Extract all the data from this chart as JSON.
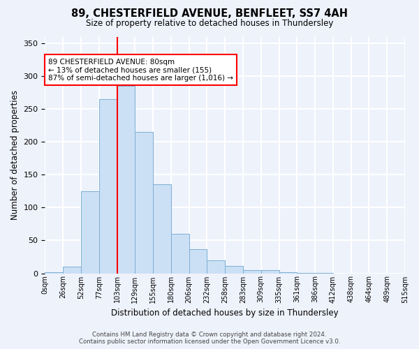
{
  "title": "89, CHESTERFIELD AVENUE, BENFLEET, SS7 4AH",
  "subtitle": "Size of property relative to detached houses in Thundersley",
  "xlabel": "Distribution of detached houses by size in Thundersley",
  "ylabel": "Number of detached properties",
  "bar_color": "#cce0f5",
  "bar_edge_color": "#7bafd4",
  "bin_labels": [
    "0sqm",
    "26sqm",
    "52sqm",
    "77sqm",
    "103sqm",
    "129sqm",
    "155sqm",
    "180sqm",
    "206sqm",
    "232sqm",
    "258sqm",
    "283sqm",
    "309sqm",
    "335sqm",
    "361sqm",
    "386sqm",
    "412sqm",
    "438sqm",
    "464sqm",
    "489sqm",
    "515sqm"
  ],
  "counts": [
    2,
    10,
    125,
    265,
    285,
    215,
    135,
    60,
    37,
    20,
    11,
    5,
    5,
    2,
    1,
    1,
    0,
    0,
    0,
    0
  ],
  "vline_bin": 3,
  "annotation_lines": [
    "89 CHESTERFIELD AVENUE: 80sqm",
    "← 13% of detached houses are smaller (155)",
    "87% of semi-detached houses are larger (1,016) →"
  ],
  "annotation_box_color": "white",
  "annotation_box_edge_color": "red",
  "vline_color": "red",
  "ylim": [
    0,
    360
  ],
  "yticks": [
    0,
    50,
    100,
    150,
    200,
    250,
    300,
    350
  ],
  "footer_line1": "Contains HM Land Registry data © Crown copyright and database right 2024.",
  "footer_line2": "Contains public sector information licensed under the Open Government Licence v3.0.",
  "background_color": "#eef2fb",
  "grid_color": "white"
}
